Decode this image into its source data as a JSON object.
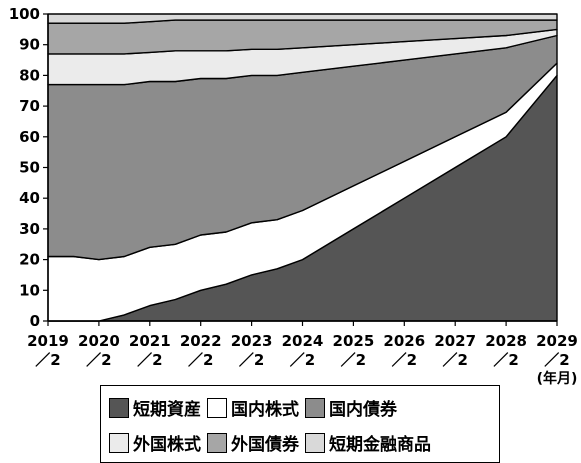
{
  "chart_data": {
    "type": "area",
    "title": "",
    "stacked": true,
    "xlabel": "",
    "xunit": "(年月)",
    "ylabel": "",
    "ylim": [
      0,
      100
    ],
    "yticks": [
      "0",
      "10",
      "20",
      "30",
      "40",
      "50",
      "60",
      "70",
      "80",
      "90",
      "100"
    ],
    "x": [
      "2019/2",
      "2019/8",
      "2020/2",
      "2020/8",
      "2021/2",
      "2021/8",
      "2022/2",
      "2022/8",
      "2023/2",
      "2023/8",
      "2024/2",
      "2025/2",
      "2026/2",
      "2027/2",
      "2028/2",
      "2029/2"
    ],
    "xticks": [
      {
        "year": "2019",
        "month": "／2"
      },
      {
        "year": "2020",
        "month": "／2"
      },
      {
        "year": "2021",
        "month": "／2"
      },
      {
        "year": "2022",
        "month": "／2"
      },
      {
        "year": "2023",
        "month": "／2"
      },
      {
        "year": "2024",
        "month": "／2"
      },
      {
        "year": "2025",
        "month": "／2"
      },
      {
        "year": "2026",
        "month": "／2"
      },
      {
        "year": "2027",
        "month": "／2"
      },
      {
        "year": "2028",
        "month": "／2"
      },
      {
        "year": "2029",
        "month": "／2"
      }
    ],
    "series": [
      {
        "name": "短期資産",
        "color": "#555555",
        "values": [
          0,
          0,
          0,
          2,
          5,
          7,
          10,
          12,
          15,
          17,
          20,
          30,
          40,
          50,
          60,
          80
        ]
      },
      {
        "name": "国内株式",
        "color": "#ffffff",
        "values": [
          21,
          21,
          20,
          19,
          19,
          18,
          18,
          17,
          17,
          16,
          16,
          14,
          12,
          10,
          8,
          4
        ]
      },
      {
        "name": "国内債券",
        "color": "#8c8c8c",
        "values": [
          56,
          56,
          57,
          56,
          54,
          53,
          51,
          50,
          48,
          47,
          45,
          39,
          33,
          27,
          21,
          9
        ]
      },
      {
        "name": "外国株式",
        "color": "#ebebeb",
        "values": [
          10,
          10,
          10,
          10,
          9.5,
          10,
          9,
          9,
          8.5,
          8.5,
          8,
          7,
          6,
          5,
          4,
          2
        ]
      },
      {
        "name": "外国債券",
        "color": "#a6a6a6",
        "values": [
          10,
          10,
          10,
          10,
          10,
          10,
          10,
          10,
          9.5,
          9.5,
          9,
          8,
          7,
          6,
          5,
          3
        ]
      },
      {
        "name": "短期金融商品",
        "color": "#d9d9d9",
        "values": [
          3,
          3,
          3,
          3,
          2.5,
          2,
          2,
          2,
          2,
          2,
          2,
          2,
          2,
          2,
          2,
          2
        ]
      }
    ]
  }
}
